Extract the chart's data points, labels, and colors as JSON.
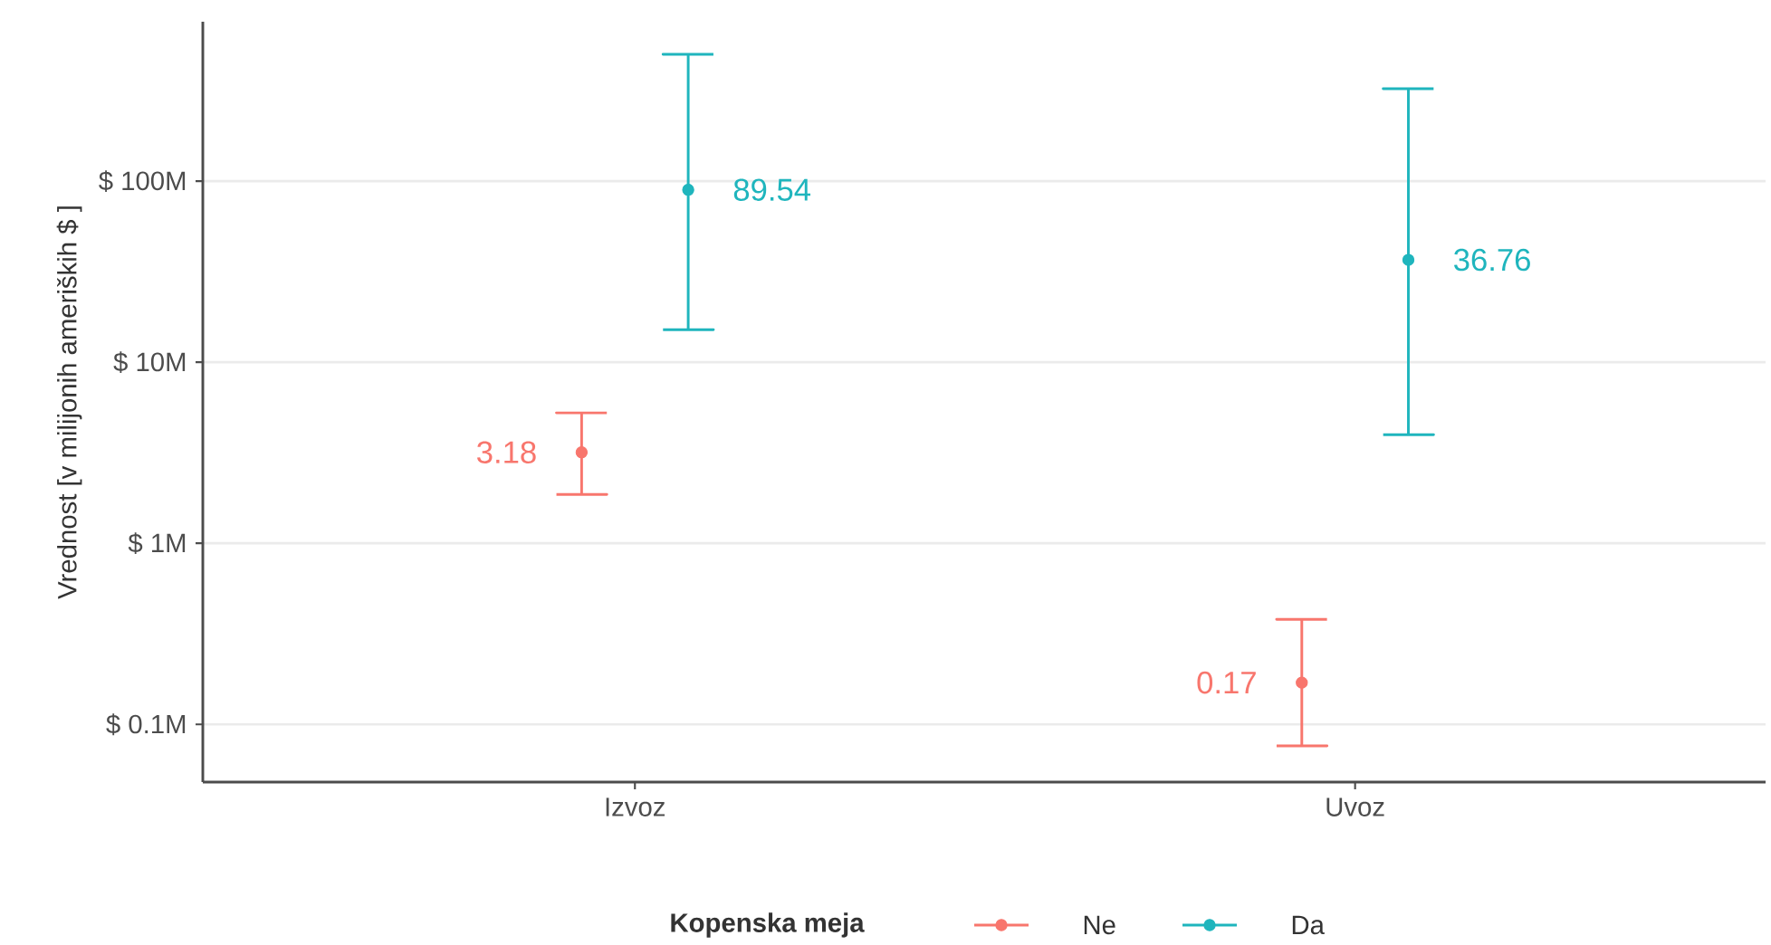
{
  "chart_data": {
    "type": "scatter",
    "ylabel": "Vrednost [v milijonih ameriških $ ]",
    "legend_title": "Kopenska meja",
    "categories": [
      "Izvoz",
      "Uvoz"
    ],
    "series": [
      {
        "name": "Ne",
        "color": "#f8766d",
        "values": [
          3.18,
          0.17
        ],
        "errors": [
          [
            1.86,
            5.25
          ],
          [
            0.076,
            0.38
          ]
        ],
        "value_labels": [
          "3.18",
          "0.17"
        ]
      },
      {
        "name": "Da",
        "color": "#1fb5bd",
        "values": [
          89.54,
          36.76
        ],
        "errors": [
          [
            15.1,
            501
          ],
          [
            3.98,
            324
          ]
        ],
        "value_labels": [
          "89.54",
          "36.76"
        ]
      }
    ],
    "log": "y",
    "ylim": [
      0.048,
      759
    ],
    "yticks": [
      {
        "value": 0.1,
        "label": "$ 0.1M"
      },
      {
        "value": 1,
        "label": "$ 1M"
      },
      {
        "value": 10,
        "label": "$ 10M"
      },
      {
        "value": 100,
        "label": "$ 100M"
      }
    ],
    "grid": "y",
    "legend": "bottom",
    "marker": "circle"
  }
}
